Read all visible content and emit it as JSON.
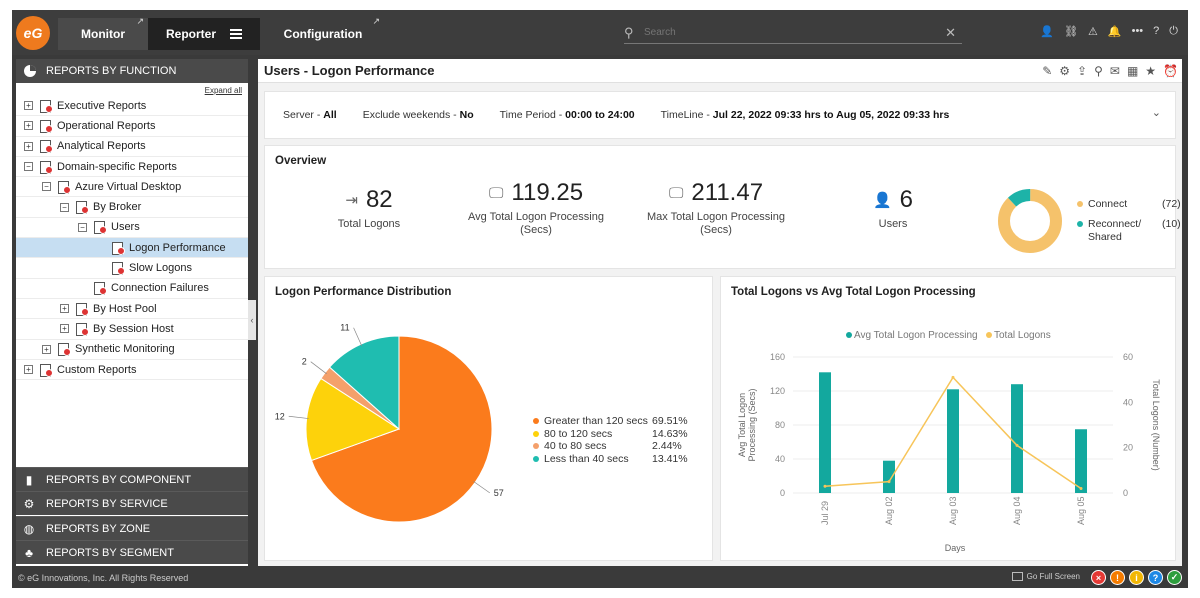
{
  "nav": {
    "logo": "eG",
    "tabs": [
      {
        "label": "Monitor"
      },
      {
        "label": "Reporter"
      },
      {
        "label": "Configuration"
      }
    ],
    "search_placeholder": "Search",
    "icons": [
      "user-icon",
      "link-icon",
      "alert-icon",
      "bell-icon",
      "more-icon",
      "help-icon",
      "power-icon"
    ]
  },
  "sidebar": {
    "header": "REPORTS BY FUNCTION",
    "expand_all": "Expand all",
    "tree": [
      {
        "label": "Executive Reports",
        "toggle": "+",
        "level": 0
      },
      {
        "label": "Operational Reports",
        "toggle": "+",
        "level": 0
      },
      {
        "label": "Analytical Reports",
        "toggle": "+",
        "level": 0
      },
      {
        "label": "Domain-specific Reports",
        "toggle": "−",
        "level": 0
      },
      {
        "label": "Azure Virtual Desktop",
        "toggle": "−",
        "level": 1
      },
      {
        "label": "By Broker",
        "toggle": "−",
        "level": 2
      },
      {
        "label": "Users",
        "toggle": "−",
        "level": 3
      },
      {
        "label": "Logon Performance",
        "toggle": "",
        "level": 4,
        "selected": true
      },
      {
        "label": "Slow Logons",
        "toggle": "",
        "level": 4
      },
      {
        "label": "Connection Failures",
        "toggle": "",
        "level": 3
      },
      {
        "label": "By Host Pool",
        "toggle": "+",
        "level": 2
      },
      {
        "label": "By Session Host",
        "toggle": "+",
        "level": 2
      },
      {
        "label": "Synthetic Monitoring",
        "toggle": "+",
        "level": 1
      },
      {
        "label": "Custom Reports",
        "toggle": "+",
        "level": 0
      }
    ],
    "groups": [
      {
        "label": "REPORTS BY COMPONENT",
        "icon": "server-icon"
      },
      {
        "label": "REPORTS BY SERVICE",
        "icon": "gear-icon"
      },
      {
        "label": "REPORTS BY ZONE",
        "icon": "globe-icon"
      },
      {
        "label": "REPORTS BY SEGMENT",
        "icon": "hierarchy-icon"
      }
    ]
  },
  "main": {
    "title": "Users - Logon Performance",
    "filters": {
      "server_label": "Server",
      "server_value": "All",
      "weekends_label": "Exclude weekends",
      "weekends_value": "No",
      "period_label": "Time Period",
      "period_value": "00:00 to 24:00",
      "timeline_label": "TimeLine",
      "timeline_value": "Jul 22, 2022 09:33 hrs to Aug 05, 2022 09:33 hrs"
    },
    "overview": {
      "title": "Overview",
      "kpis": [
        {
          "value": "82",
          "label": "Total Logons",
          "icon": "login-icon"
        },
        {
          "value": "119.25",
          "label": "Avg Total Logon Processing (Secs)",
          "icon": "clock-monitor-icon"
        },
        {
          "value": "211.47",
          "label": "Max Total Logon Processing (Secs)",
          "icon": "clock-monitor-icon"
        },
        {
          "value": "6",
          "label": "Users",
          "icon": "user-icon"
        }
      ],
      "donut": [
        {
          "name": "Connect",
          "value": 72,
          "display": "(72)",
          "color": "#f5c26b"
        },
        {
          "name": "Reconnect/ Shared",
          "value": 10,
          "display": "(10)",
          "color": "#1db3a8"
        }
      ]
    },
    "distribution": {
      "title": "Logon Performance Distribution"
    },
    "combo": {
      "title": "Total Logons vs Avg Total Logon Processing"
    }
  },
  "chart_data": [
    {
      "type": "pie",
      "title": "Logon Performance Distribution",
      "slices": [
        {
          "name": "Greater than 120 secs",
          "value": 57,
          "percent": "69.51%",
          "color": "#fb7b1c"
        },
        {
          "name": "80 to 120 secs",
          "value": 12,
          "percent": "14.63%",
          "color": "#fdd20b"
        },
        {
          "name": "40 to 80 secs",
          "value": 2,
          "percent": "2.44%",
          "color": "#f4a06b"
        },
        {
          "name": "Less than 40 secs",
          "value": 11,
          "percent": "13.41%",
          "color": "#1fbdb0"
        }
      ]
    },
    {
      "type": "bar",
      "title": "Total Logons vs Avg Total Logon Processing",
      "categories": [
        "Jul 29",
        "Aug 02",
        "Aug 03",
        "Aug 04",
        "Aug 05"
      ],
      "xlabel": "Days",
      "ylabel": "Avg Total Logon Processing (Secs)",
      "y2label": "Total Logons (Number)",
      "ylim": [
        0,
        160
      ],
      "y2lim": [
        0,
        60
      ],
      "yticks": [
        0,
        40,
        80,
        120,
        160
      ],
      "y2ticks": [
        0,
        20,
        40,
        60
      ],
      "legend_position": "top",
      "series": [
        {
          "name": "Avg Total Logon Processing",
          "type": "bar",
          "axis": "left",
          "color": "#13a89e",
          "values": [
            142,
            38,
            122,
            128,
            75
          ]
        },
        {
          "name": "Total Logons",
          "type": "line",
          "axis": "right",
          "color": "#f7c55a",
          "values": [
            3,
            5,
            51,
            21,
            2
          ]
        }
      ]
    }
  ],
  "footer": {
    "copyright": "© eG Innovations, Inc. All Rights Reserved",
    "fullscreen": "Go Full Screen",
    "status": [
      {
        "name": "critical",
        "glyph": "×",
        "color": "#e53935"
      },
      {
        "name": "major",
        "glyph": "!",
        "color": "#f57c00"
      },
      {
        "name": "minor",
        "glyph": "i",
        "color": "#f2b705"
      },
      {
        "name": "help",
        "glyph": "?",
        "color": "#1e88e5"
      },
      {
        "name": "normal",
        "glyph": "✓",
        "color": "#2e9e3e"
      }
    ]
  }
}
